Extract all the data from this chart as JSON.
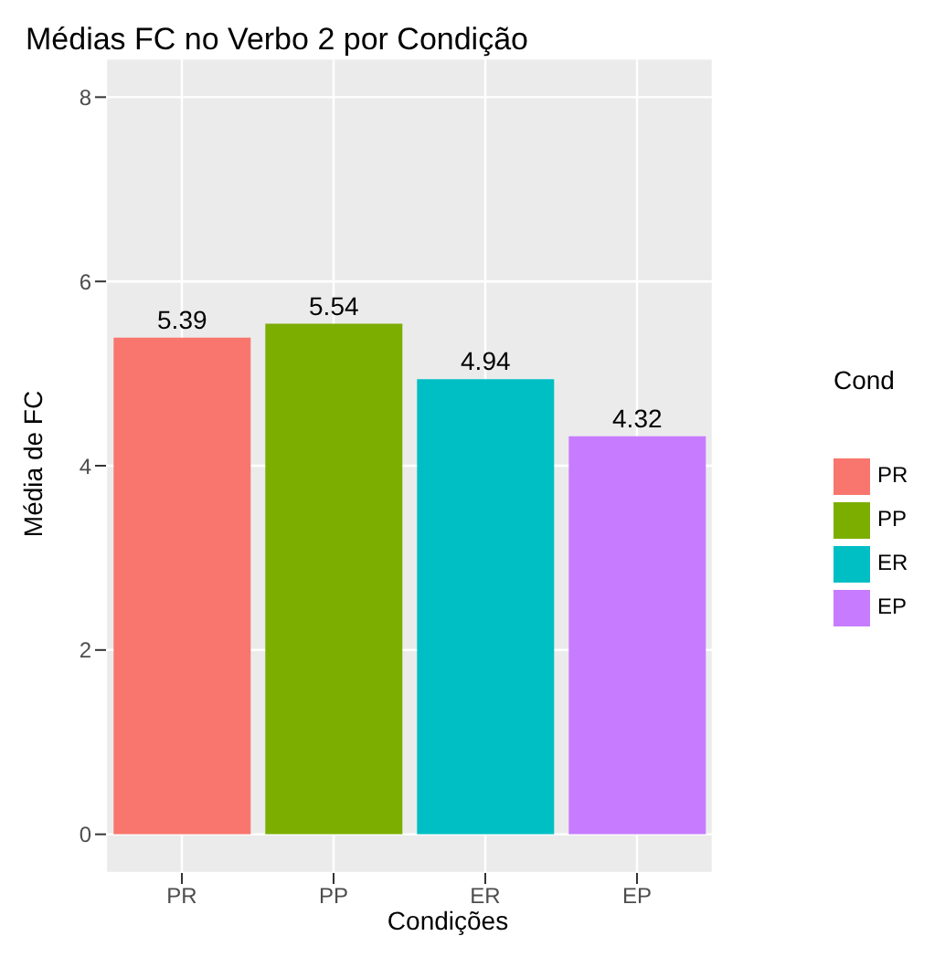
{
  "chart_data": {
    "type": "bar",
    "title": "Médias FC no Verbo 2 por Condição",
    "xlabel": "Condições",
    "ylabel": "Média de FC",
    "legend_title": "Cond",
    "categories": [
      "PR",
      "PP",
      "ER",
      "EP"
    ],
    "series": [
      {
        "name": "PR",
        "color": "#f8766d",
        "values": [
          5.39,
          null,
          null,
          null
        ]
      },
      {
        "name": "PP",
        "color": "#7cae00",
        "values": [
          null,
          5.54,
          null,
          null
        ]
      },
      {
        "name": "ER",
        "color": "#00bfc4",
        "values": [
          null,
          null,
          4.94,
          null
        ]
      },
      {
        "name": "EP",
        "color": "#c77cff",
        "values": [
          null,
          null,
          null,
          4.32
        ]
      }
    ],
    "stacked": true,
    "data_labels": true,
    "ylim": [
      -0.42,
      8.42
    ],
    "yticks": [
      0,
      2,
      4,
      6,
      8
    ],
    "grid": true,
    "legend": "right"
  }
}
